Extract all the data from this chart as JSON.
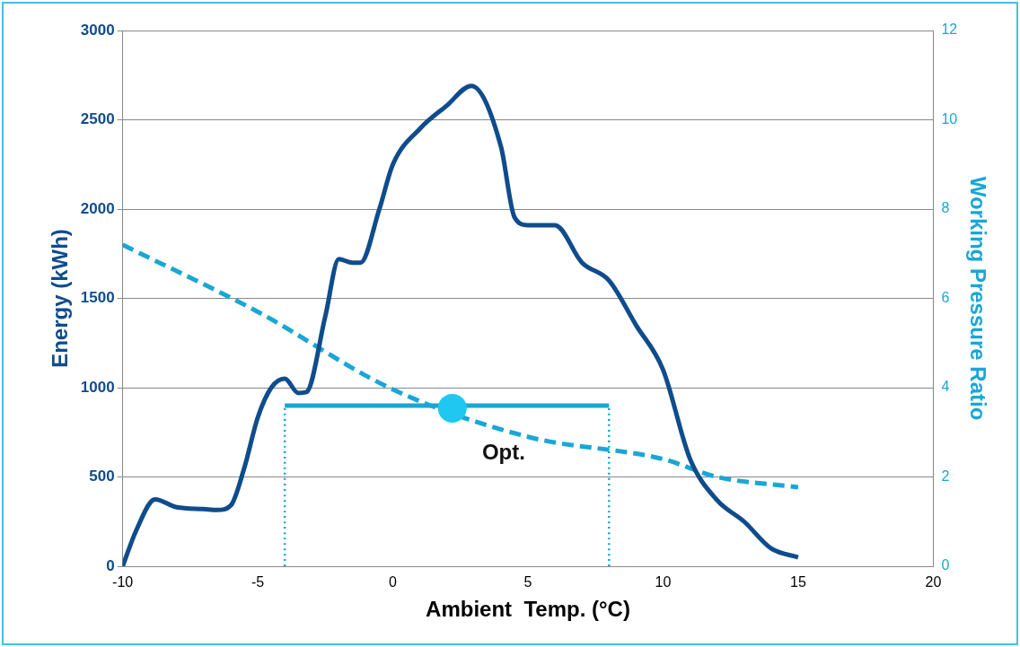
{
  "chart_data": {
    "type": "line",
    "xlabel": "Ambient  Temp. (°C)",
    "ylabel": "Energy (kWh)",
    "y2label": "Working Pressure Ratio",
    "xlim": [
      -10,
      20
    ],
    "xticks": [
      -10,
      -5,
      0,
      5,
      10,
      15,
      20
    ],
    "ylim": [
      0,
      3000
    ],
    "yticks": [
      0,
      500,
      1000,
      1500,
      2000,
      2500,
      3000
    ],
    "y2lim": [
      0,
      12
    ],
    "y2ticks": [
      0,
      2,
      4,
      6,
      8,
      10,
      12
    ],
    "grid": "y",
    "legend": false,
    "marker": "none",
    "line_style": "solid",
    "series": [
      {
        "color": "#0f4c8c",
        "x": [
          -10,
          -9.5,
          -8.8,
          -8,
          -7,
          -6.5,
          -6,
          -5.5,
          -5,
          -4.5,
          -4,
          -3.5,
          -3.2,
          -2.5,
          -2,
          -1.5,
          -1.2,
          -0.5,
          0,
          1,
          2,
          2.9,
          4,
          4.5,
          5,
          6,
          7,
          8,
          9,
          10,
          11,
          12,
          13,
          14,
          15
        ],
        "values": [
          0,
          200,
          375,
          330,
          320,
          315,
          340,
          550,
          833,
          1000,
          1050,
          970,
          975,
          1400,
          1720,
          1700,
          1700,
          2000,
          2250,
          2450,
          2580,
          2690,
          2350,
          1955,
          1910,
          1910,
          1700,
          1600,
          1350,
          1100,
          600,
          370,
          250,
          100,
          50
        ]
      },
      {
        "axis": "y2",
        "color": "#1aa6d6",
        "line_style": "dashed",
        "x": [
          -10,
          -5,
          0,
          5,
          10,
          12,
          15
        ],
        "values": [
          7.2,
          5.7,
          3.96,
          2.9,
          2.4,
          2.0,
          1.77
        ]
      },
      {
        "color": "#1aa6d6",
        "x": [
          -4,
          8
        ],
        "values": [
          900,
          900
        ]
      },
      {
        "color": "#1aa6d6",
        "line_style": "dotted",
        "x": [
          -4,
          -4
        ],
        "values": [
          0,
          900
        ]
      },
      {
        "color": "#1aa6d6",
        "line_style": "dotted",
        "x": [
          8,
          8
        ],
        "values": [
          0,
          900
        ]
      },
      {
        "type": "scatter",
        "color": "#1ec8f0",
        "marker": "circle",
        "x": [
          2.2
        ],
        "values": [
          885
        ]
      }
    ],
    "annotations": [
      "Opt."
    ]
  }
}
